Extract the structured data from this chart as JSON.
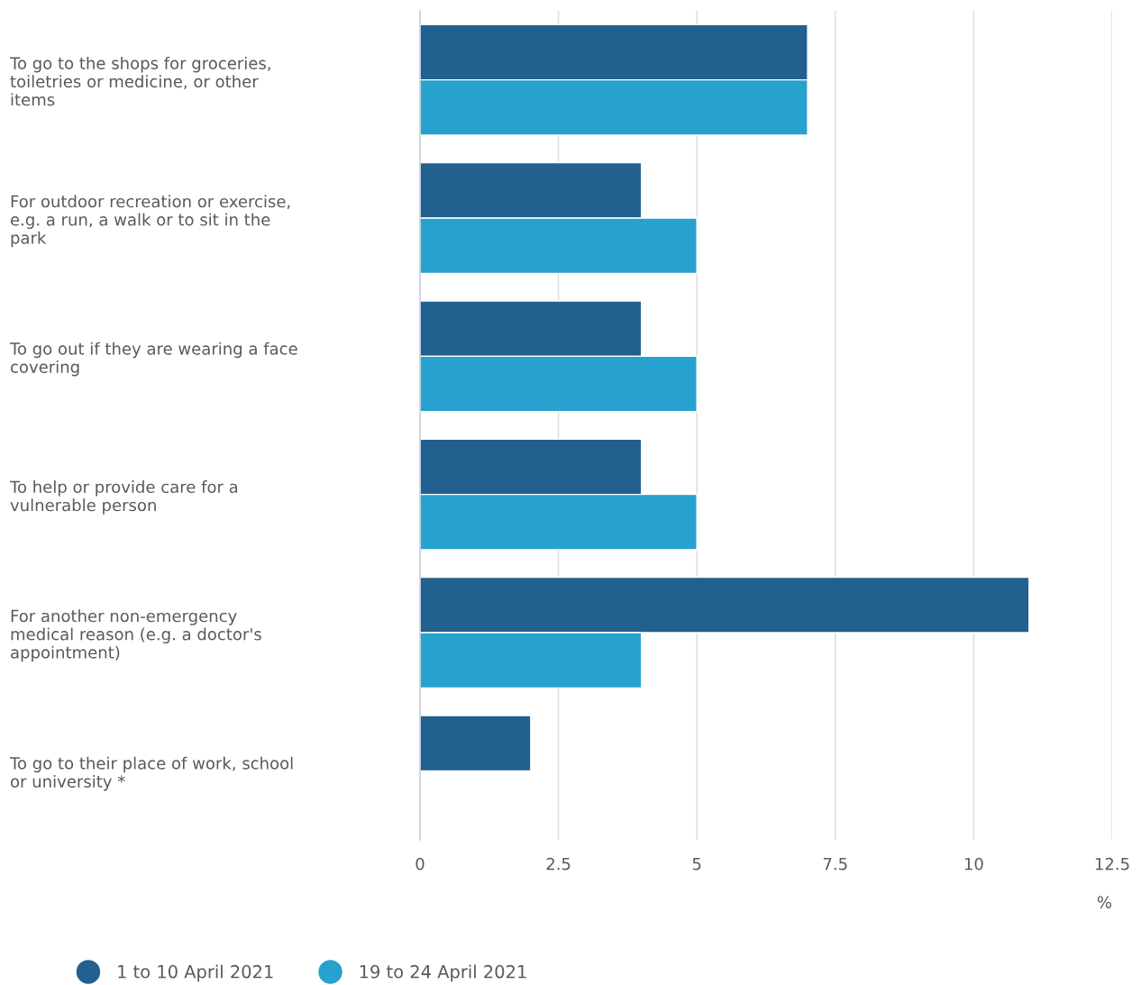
{
  "chart_data": {
    "type": "bar",
    "orientation": "horizontal",
    "xlabel": "%",
    "categories": [
      "To go to the shops for groceries,\ntoiletries or medicine, or other\nitems",
      "For outdoor recreation or exercise,\ne.g. a run, a walk or to sit in the\npark",
      "To go out if they are wearing a face\ncovering",
      "To help or provide care for a\nvulnerable person",
      "For another non-emergency\nmedical reason (e.g. a doctor's\nappointment)",
      "To go to their place of work, school\nor university *"
    ],
    "series": [
      {
        "name": "1 to 10 April 2021",
        "color": "#21608f",
        "values": [
          7,
          4,
          4,
          4,
          11,
          2
        ]
      },
      {
        "name": "19 to 24 April 2021",
        "color": "#27a1cd",
        "values": [
          7,
          5,
          5,
          5,
          4,
          null
        ]
      }
    ],
    "xlim": [
      0,
      12.5
    ],
    "xticks": [
      0,
      2.5,
      5,
      7.5,
      10,
      12.5
    ],
    "grid": "x",
    "legend": "bottom left"
  }
}
